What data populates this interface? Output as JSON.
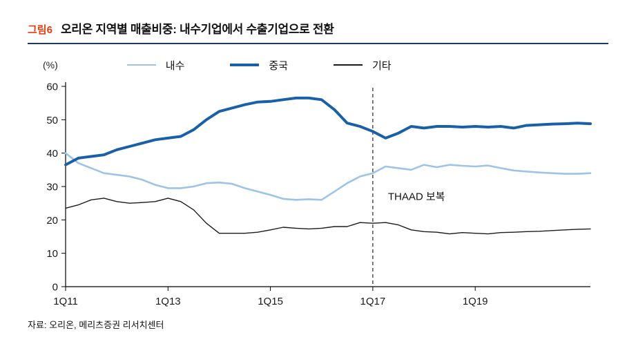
{
  "header": {
    "figure_label": "그림6",
    "title": "오리온 지역별 매출비중: 내수기업에서 수출기업으로 전환",
    "rule_color": "#1b3a66",
    "figure_label_color": "#e8380d"
  },
  "chart_data": {
    "type": "line",
    "title": "오리온 지역별 매출비중",
    "unit_label": "(%)",
    "ylim": [
      0,
      60
    ],
    "yticks": [
      0,
      10,
      20,
      30,
      40,
      50,
      60
    ],
    "x": [
      "1Q11",
      "2Q11",
      "3Q11",
      "4Q11",
      "1Q12",
      "2Q12",
      "3Q12",
      "4Q12",
      "1Q13",
      "2Q13",
      "3Q13",
      "4Q13",
      "1Q14",
      "2Q14",
      "3Q14",
      "4Q14",
      "1Q15",
      "2Q15",
      "3Q15",
      "4Q15",
      "1Q16",
      "2Q16",
      "3Q16",
      "4Q16",
      "1Q17",
      "2Q17",
      "3Q17",
      "4Q17",
      "1Q18",
      "2Q18",
      "3Q18",
      "4Q18",
      "1Q19",
      "2Q19",
      "3Q19",
      "4Q19",
      "1Q20",
      "2Q20",
      "3Q20",
      "4Q20",
      "1Q21",
      "2Q21"
    ],
    "x_tick_indices": [
      0,
      8,
      16,
      24,
      32
    ],
    "x_tick_labels": [
      "1Q11",
      "1Q13",
      "1Q15",
      "1Q17",
      "1Q19"
    ],
    "grid": false,
    "legend_position": "top",
    "series": [
      {
        "name": "내수",
        "color": "#9dc3e6",
        "width": 2.6,
        "values": [
          40,
          37,
          35.5,
          34,
          33.5,
          33,
          32,
          30.5,
          29.5,
          29.5,
          30,
          31,
          31.2,
          30.8,
          29.5,
          28.5,
          27.5,
          26.3,
          26,
          26.2,
          26,
          28.5,
          31,
          33,
          34,
          36,
          35.5,
          35,
          36.5,
          35.8,
          36.5,
          36.2,
          36,
          36.3,
          35.5,
          34.8,
          34.5,
          34.2,
          34,
          33.8,
          33.8,
          34
        ]
      },
      {
        "name": "중국",
        "color": "#1a60a8",
        "width": 4,
        "values": [
          36.5,
          38.5,
          39,
          39.5,
          41,
          42,
          43,
          44,
          44.5,
          45,
          47,
          50,
          52.5,
          53.5,
          54.5,
          55.3,
          55.5,
          56,
          56.5,
          56.5,
          56,
          53,
          49,
          48,
          46.5,
          44.5,
          46,
          48,
          47.5,
          48,
          48,
          47.8,
          48,
          47.8,
          48,
          47.5,
          48.3,
          48.5,
          48.7,
          48.8,
          49,
          48.8
        ]
      },
      {
        "name": "기타",
        "color": "#1a1a1a",
        "width": 1.4,
        "values": [
          23.5,
          24.5,
          26,
          26.5,
          25.5,
          25,
          25.2,
          25.5,
          26.5,
          25.5,
          23,
          19,
          16,
          16,
          16,
          16.3,
          17,
          17.8,
          17.5,
          17.3,
          17.5,
          18,
          18,
          19.2,
          19,
          19.2,
          18.5,
          17,
          16.5,
          16.3,
          15.8,
          16.2,
          16,
          15.8,
          16.2,
          16.3,
          16.5,
          16.6,
          16.8,
          17,
          17.2,
          17.3
        ]
      }
    ],
    "annotation": {
      "text": "THAAD 보복",
      "x_index": 24,
      "label_value": 27,
      "line_style": "dashed"
    }
  },
  "footer": {
    "source": "자료: 오리온, 메리츠증권 리서치센터"
  }
}
